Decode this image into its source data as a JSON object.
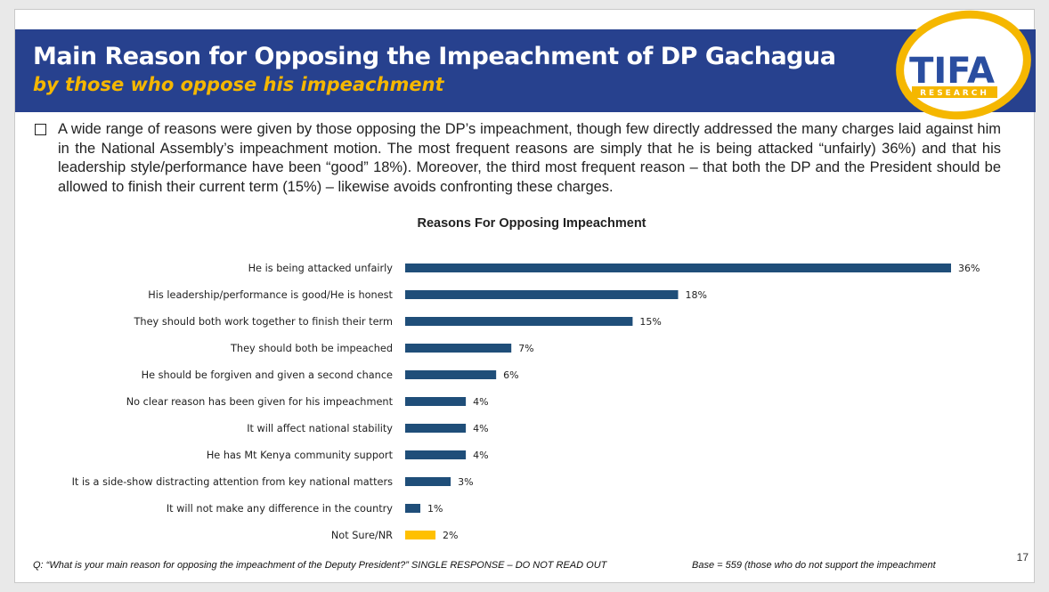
{
  "slide": {
    "title": "Main Reason for Opposing the Impeachment of DP Gachagua",
    "subtitle": "by those who oppose his impeachment",
    "logo": {
      "wordmark": "TIFA",
      "tagline": "RESEARCH"
    },
    "bullet": "A wide range of reasons were given by those opposing the DP’s impeachment, though few directly addressed the many charges laid against him in the National Assembly’s impeachment motion.  The most frequent reasons are simply that he is being attacked “unfairly) 36%) and that his leadership style/performance have been “good” 18%).  Moreover, the third most frequent reason – that both the DP and the President should be allowed to finish their current term (15%) – likewise avoids confronting these charges.",
    "footer_question": "Q: “What is your main reason for opposing the impeachment of the Deputy President?”  SINGLE RESPONSE – DO NOT READ OUT",
    "footer_base": "Base = 559 (those who do not support the impeachment",
    "page_number": "17"
  },
  "colors": {
    "band": "#27418e",
    "subtitle": "#f5b700",
    "bar": "#1f4e79",
    "bar_highlight": "#ffc000",
    "logo_ring": "#f5b700"
  },
  "chart_data": {
    "type": "bar",
    "orientation": "horizontal",
    "title": "Reasons For Opposing Impeachment",
    "xlim": [
      0,
      36
    ],
    "grid": false,
    "legend": "none",
    "value_suffix": "%",
    "categories": [
      "He is being attacked unfairly",
      "His leadership/performance is good/He is honest",
      "They should both work together to finish their term",
      "They should both be impeached",
      "He should be forgiven and given a second chance",
      "No clear reason has been given for his impeachment",
      "It will affect national stability",
      "He has Mt Kenya community support",
      "It is a side-show distracting attention from key national matters",
      "It will not make any difference in the country",
      "Not Sure/NR"
    ],
    "values": [
      36,
      18,
      15,
      7,
      6,
      4,
      4,
      4,
      3,
      1,
      2
    ],
    "data_labels": [
      "36%",
      "18%",
      "15%",
      "7%",
      "6%",
      "4%",
      "4%",
      "4%",
      "3%",
      "1%",
      "2%"
    ],
    "highlight_category": "Not Sure/NR"
  }
}
